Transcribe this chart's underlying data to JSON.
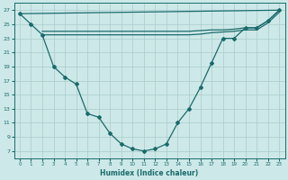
{
  "xlabel": "Humidex (Indice chaleur)",
  "bg_color": "#cde8e8",
  "line_color": "#1a6b6b",
  "grid_color": "#a8cccc",
  "xlim": [
    -0.5,
    23.5
  ],
  "ylim": [
    6,
    28
  ],
  "xticks": [
    0,
    1,
    2,
    3,
    4,
    5,
    6,
    7,
    8,
    9,
    10,
    11,
    12,
    13,
    14,
    15,
    16,
    17,
    18,
    19,
    20,
    21,
    22,
    23
  ],
  "yticks": [
    7,
    9,
    11,
    13,
    15,
    17,
    19,
    21,
    23,
    25,
    27
  ],
  "line1_x": [
    0,
    1,
    2,
    3,
    4,
    5,
    6,
    7,
    8,
    9,
    10,
    11,
    12,
    13,
    14,
    15,
    16,
    17,
    18,
    19,
    20,
    21,
    22,
    23
  ],
  "line1_y": [
    26.5,
    25.0,
    23.5,
    19.0,
    17.5,
    16.5,
    12.3,
    11.8,
    9.5,
    8.0,
    7.3,
    7.0,
    7.3,
    8.0,
    11.0,
    13.0,
    16.0,
    19.5,
    23.0,
    23.0,
    24.5,
    24.5,
    25.5,
    27.0
  ],
  "line2_x": [
    2,
    3,
    4,
    5,
    6,
    7,
    8,
    9,
    10,
    11,
    12,
    13,
    14,
    15,
    16,
    17,
    18,
    19,
    20,
    21,
    22,
    23
  ],
  "line2_y": [
    24.0,
    24.0,
    24.0,
    24.0,
    24.0,
    24.0,
    24.0,
    24.0,
    24.0,
    24.0,
    24.0,
    24.0,
    24.0,
    24.0,
    24.1,
    24.2,
    24.2,
    24.3,
    24.5,
    24.5,
    25.5,
    27.0
  ],
  "line2b_x": [
    2,
    3,
    4,
    5,
    6,
    7,
    8,
    9,
    10,
    11,
    12,
    13,
    14,
    15,
    16,
    17,
    18,
    19,
    20,
    21,
    22,
    23
  ],
  "line2b_y": [
    23.5,
    23.5,
    23.5,
    23.5,
    23.5,
    23.5,
    23.5,
    23.5,
    23.5,
    23.5,
    23.5,
    23.5,
    23.5,
    23.5,
    23.6,
    23.8,
    23.9,
    24.0,
    24.2,
    24.2,
    25.2,
    26.7
  ],
  "line3_x": [
    0,
    23
  ],
  "line3_y": [
    26.5,
    27.0
  ]
}
